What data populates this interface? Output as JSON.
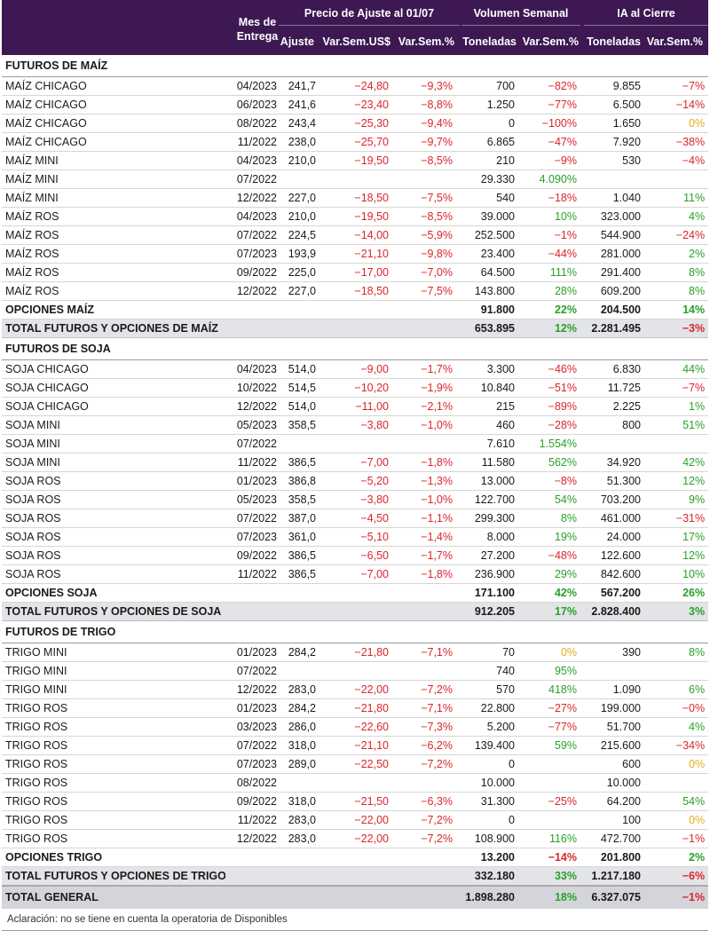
{
  "header": {
    "mes_label_1": "Mes de",
    "mes_label_2": "Entrega",
    "precio_group": "Precio de Ajuste al 01/07",
    "volumen_group": "Volumen Semanal",
    "ia_group": "IA al Cierre",
    "ajuste": "Ajuste",
    "var_usd": "Var.Sem.US$",
    "var_pct": "Var.Sem.%",
    "toneladas": "Toneladas",
    "vol_var": "Var.Sem.%",
    "ia_toneladas": "Toneladas",
    "ia_var": "Var.Sem.%"
  },
  "colors": {
    "header_bg": "#3d1852",
    "negative": "#d9252c",
    "positive": "#2aa02a",
    "zero": "#e0b020",
    "total_bg": "#e3e4e8"
  },
  "rows": [
    {
      "type": "section",
      "name": "FUTUROS DE MAÍZ"
    },
    {
      "type": "data",
      "name": "MAÍZ CHICAGO",
      "mes": "04/2023",
      "ajuste": "241,7",
      "var_usd": "-24,80",
      "var_pct": "-9,3%",
      "ton": "700",
      "vol_var": "-82%",
      "ia_ton": "9.855",
      "ia_var": "-7%"
    },
    {
      "type": "data",
      "name": "MAÍZ CHICAGO",
      "mes": "06/2023",
      "ajuste": "241,6",
      "var_usd": "-23,40",
      "var_pct": "-8,8%",
      "ton": "1.250",
      "vol_var": "-77%",
      "ia_ton": "6.500",
      "ia_var": "-14%"
    },
    {
      "type": "data",
      "name": "MAÍZ CHICAGO",
      "mes": "08/2022",
      "ajuste": "243,4",
      "var_usd": "-25,30",
      "var_pct": "-9,4%",
      "ton": "0",
      "vol_var": "-100%",
      "ia_ton": "1.650",
      "ia_var": "0%"
    },
    {
      "type": "data",
      "name": "MAÍZ CHICAGO",
      "mes": "11/2022",
      "ajuste": "238,0",
      "var_usd": "-25,70",
      "var_pct": "-9,7%",
      "ton": "6.865",
      "vol_var": "-47%",
      "ia_ton": "7.920",
      "ia_var": "-38%"
    },
    {
      "type": "data",
      "name": "MAÍZ MINI",
      "mes": "04/2023",
      "ajuste": "210,0",
      "var_usd": "-19,50",
      "var_pct": "-8,5%",
      "ton": "210",
      "vol_var": "-9%",
      "ia_ton": "530",
      "ia_var": "-4%"
    },
    {
      "type": "data",
      "name": "MAÍZ MINI",
      "mes": "07/2022",
      "ajuste": "",
      "var_usd": "",
      "var_pct": "",
      "ton": "29.330",
      "vol_var": "4.090%",
      "ia_ton": "",
      "ia_var": ""
    },
    {
      "type": "data",
      "name": "MAÍZ MINI",
      "mes": "12/2022",
      "ajuste": "227,0",
      "var_usd": "-18,50",
      "var_pct": "-7,5%",
      "ton": "540",
      "vol_var": "-18%",
      "ia_ton": "1.040",
      "ia_var": "11%"
    },
    {
      "type": "data",
      "name": "MAÍZ ROS",
      "mes": "04/2023",
      "ajuste": "210,0",
      "var_usd": "-19,50",
      "var_pct": "-8,5%",
      "ton": "39.000",
      "vol_var": "10%",
      "ia_ton": "323.000",
      "ia_var": "4%"
    },
    {
      "type": "data",
      "name": "MAÍZ ROS",
      "mes": "07/2022",
      "ajuste": "224,5",
      "var_usd": "-14,00",
      "var_pct": "-5,9%",
      "ton": "252.500",
      "vol_var": "-1%",
      "ia_ton": "544.900",
      "ia_var": "-24%"
    },
    {
      "type": "data",
      "name": "MAÍZ ROS",
      "mes": "07/2023",
      "ajuste": "193,9",
      "var_usd": "-21,10",
      "var_pct": "-9,8%",
      "ton": "23.400",
      "vol_var": "-44%",
      "ia_ton": "281.000",
      "ia_var": "2%"
    },
    {
      "type": "data",
      "name": "MAÍZ ROS",
      "mes": "09/2022",
      "ajuste": "225,0",
      "var_usd": "-17,00",
      "var_pct": "-7,0%",
      "ton": "64.500",
      "vol_var": "111%",
      "ia_ton": "291.400",
      "ia_var": "8%"
    },
    {
      "type": "data",
      "name": "MAÍZ ROS",
      "mes": "12/2022",
      "ajuste": "227,0",
      "var_usd": "-18,50",
      "var_pct": "-7,5%",
      "ton": "143.800",
      "vol_var": "28%",
      "ia_ton": "609.200",
      "ia_var": "8%"
    },
    {
      "type": "options",
      "name": "OPCIONES MAÍZ",
      "ton": "91.800",
      "vol_var": "22%",
      "ia_ton": "204.500",
      "ia_var": "14%"
    },
    {
      "type": "total",
      "name": "TOTAL FUTUROS Y OPCIONES DE MAÍZ",
      "ton": "653.895",
      "vol_var": "12%",
      "ia_ton": "2.281.495",
      "ia_var": "-3%"
    },
    {
      "type": "section",
      "name": "FUTUROS DE SOJA"
    },
    {
      "type": "data",
      "name": "SOJA CHICAGO",
      "mes": "04/2023",
      "ajuste": "514,0",
      "var_usd": "-9,00",
      "var_pct": "-1,7%",
      "ton": "3.300",
      "vol_var": "-46%",
      "ia_ton": "6.830",
      "ia_var": "44%"
    },
    {
      "type": "data",
      "name": "SOJA CHICAGO",
      "mes": "10/2022",
      "ajuste": "514,5",
      "var_usd": "-10,20",
      "var_pct": "-1,9%",
      "ton": "10.840",
      "vol_var": "-51%",
      "ia_ton": "11.725",
      "ia_var": "-7%"
    },
    {
      "type": "data",
      "name": "SOJA CHICAGO",
      "mes": "12/2022",
      "ajuste": "514,0",
      "var_usd": "-11,00",
      "var_pct": "-2,1%",
      "ton": "215",
      "vol_var": "-89%",
      "ia_ton": "2.225",
      "ia_var": "1%"
    },
    {
      "type": "data",
      "name": "SOJA MINI",
      "mes": "05/2023",
      "ajuste": "358,5",
      "var_usd": "-3,80",
      "var_pct": "-1,0%",
      "ton": "460",
      "vol_var": "-28%",
      "ia_ton": "800",
      "ia_var": "51%"
    },
    {
      "type": "data",
      "name": "SOJA MINI",
      "mes": "07/2022",
      "ajuste": "",
      "var_usd": "",
      "var_pct": "",
      "ton": "7.610",
      "vol_var": "1.554%",
      "ia_ton": "",
      "ia_var": ""
    },
    {
      "type": "data",
      "name": "SOJA MINI",
      "mes": "11/2022",
      "ajuste": "386,5",
      "var_usd": "-7,00",
      "var_pct": "-1,8%",
      "ton": "11.580",
      "vol_var": "562%",
      "ia_ton": "34.920",
      "ia_var": "42%"
    },
    {
      "type": "data",
      "name": "SOJA ROS",
      "mes": "01/2023",
      "ajuste": "386,8",
      "var_usd": "-5,20",
      "var_pct": "-1,3%",
      "ton": "13.000",
      "vol_var": "-8%",
      "ia_ton": "51.300",
      "ia_var": "12%"
    },
    {
      "type": "data",
      "name": "SOJA ROS",
      "mes": "05/2023",
      "ajuste": "358,5",
      "var_usd": "-3,80",
      "var_pct": "-1,0%",
      "ton": "122.700",
      "vol_var": "54%",
      "ia_ton": "703.200",
      "ia_var": "9%"
    },
    {
      "type": "data",
      "name": "SOJA ROS",
      "mes": "07/2022",
      "ajuste": "387,0",
      "var_usd": "-4,50",
      "var_pct": "-1,1%",
      "ton": "299.300",
      "vol_var": "8%",
      "ia_ton": "461.000",
      "ia_var": "-31%"
    },
    {
      "type": "data",
      "name": "SOJA ROS",
      "mes": "07/2023",
      "ajuste": "361,0",
      "var_usd": "-5,10",
      "var_pct": "-1,4%",
      "ton": "8.000",
      "vol_var": "19%",
      "ia_ton": "24.000",
      "ia_var": "17%"
    },
    {
      "type": "data",
      "name": "SOJA ROS",
      "mes": "09/2022",
      "ajuste": "386,5",
      "var_usd": "-6,50",
      "var_pct": "-1,7%",
      "ton": "27.200",
      "vol_var": "-48%",
      "ia_ton": "122.600",
      "ia_var": "12%"
    },
    {
      "type": "data",
      "name": "SOJA ROS",
      "mes": "11/2022",
      "ajuste": "386,5",
      "var_usd": "-7,00",
      "var_pct": "-1,8%",
      "ton": "236.900",
      "vol_var": "29%",
      "ia_ton": "842.600",
      "ia_var": "10%"
    },
    {
      "type": "options",
      "name": "OPCIONES SOJA",
      "ton": "171.100",
      "vol_var": "42%",
      "ia_ton": "567.200",
      "ia_var": "26%"
    },
    {
      "type": "total",
      "name": "TOTAL FUTUROS Y OPCIONES DE SOJA",
      "ton": "912.205",
      "vol_var": "17%",
      "ia_ton": "2.828.400",
      "ia_var": "3%"
    },
    {
      "type": "section",
      "name": "FUTUROS DE TRIGO"
    },
    {
      "type": "data",
      "name": "TRIGO MINI",
      "mes": "01/2023",
      "ajuste": "284,2",
      "var_usd": "-21,80",
      "var_pct": "-7,1%",
      "ton": "70",
      "vol_var": "0%",
      "ia_ton": "390",
      "ia_var": "8%"
    },
    {
      "type": "data",
      "name": "TRIGO MINI",
      "mes": "07/2022",
      "ajuste": "",
      "var_usd": "",
      "var_pct": "",
      "ton": "740",
      "vol_var": "95%",
      "ia_ton": "",
      "ia_var": ""
    },
    {
      "type": "data",
      "name": "TRIGO MINI",
      "mes": "12/2022",
      "ajuste": "283,0",
      "var_usd": "-22,00",
      "var_pct": "-7,2%",
      "ton": "570",
      "vol_var": "418%",
      "ia_ton": "1.090",
      "ia_var": "6%"
    },
    {
      "type": "data",
      "name": "TRIGO ROS",
      "mes": "01/2023",
      "ajuste": "284,2",
      "var_usd": "-21,80",
      "var_pct": "-7,1%",
      "ton": "22.800",
      "vol_var": "-27%",
      "ia_ton": "199.000",
      "ia_var": "-0%"
    },
    {
      "type": "data",
      "name": "TRIGO ROS",
      "mes": "03/2023",
      "ajuste": "286,0",
      "var_usd": "-22,60",
      "var_pct": "-7,3%",
      "ton": "5.200",
      "vol_var": "-77%",
      "ia_ton": "51.700",
      "ia_var": "4%"
    },
    {
      "type": "data",
      "name": "TRIGO ROS",
      "mes": "07/2022",
      "ajuste": "318,0",
      "var_usd": "-21,10",
      "var_pct": "-6,2%",
      "ton": "139.400",
      "vol_var": "59%",
      "ia_ton": "215.600",
      "ia_var": "-34%"
    },
    {
      "type": "data",
      "name": "TRIGO ROS",
      "mes": "07/2023",
      "ajuste": "289,0",
      "var_usd": "-22,50",
      "var_pct": "-7,2%",
      "ton": "0",
      "vol_var": "",
      "ia_ton": "600",
      "ia_var": "0%"
    },
    {
      "type": "data",
      "name": "TRIGO ROS",
      "mes": "08/2022",
      "ajuste": "",
      "var_usd": "",
      "var_pct": "",
      "ton": "10.000",
      "vol_var": "",
      "ia_ton": "10.000",
      "ia_var": ""
    },
    {
      "type": "data",
      "name": "TRIGO ROS",
      "mes": "09/2022",
      "ajuste": "318,0",
      "var_usd": "-21,50",
      "var_pct": "-6,3%",
      "ton": "31.300",
      "vol_var": "-25%",
      "ia_ton": "64.200",
      "ia_var": "54%"
    },
    {
      "type": "data",
      "name": "TRIGO ROS",
      "mes": "11/2022",
      "ajuste": "283,0",
      "var_usd": "-22,00",
      "var_pct": "-7,2%",
      "ton": "0",
      "vol_var": "",
      "ia_ton": "100",
      "ia_var": "0%"
    },
    {
      "type": "data",
      "name": "TRIGO ROS",
      "mes": "12/2022",
      "ajuste": "283,0",
      "var_usd": "-22,00",
      "var_pct": "-7,2%",
      "ton": "108.900",
      "vol_var": "116%",
      "ia_ton": "472.700",
      "ia_var": "-1%"
    },
    {
      "type": "options",
      "name": "OPCIONES TRIGO",
      "ton": "13.200",
      "vol_var": "-14%",
      "ia_ton": "201.800",
      "ia_var": "2%"
    },
    {
      "type": "total",
      "name": "TOTAL FUTUROS Y OPCIONES DE TRIGO",
      "ton": "332.180",
      "vol_var": "33%",
      "ia_ton": "1.217.180",
      "ia_var": "-6%"
    },
    {
      "type": "general",
      "name": "TOTAL GENERAL",
      "ton": "1.898.280",
      "vol_var": "18%",
      "ia_ton": "6.327.075",
      "ia_var": "-1%"
    }
  ],
  "footnote": "Aclaración: no se tiene en cuenta la operatoria de Disponibles"
}
